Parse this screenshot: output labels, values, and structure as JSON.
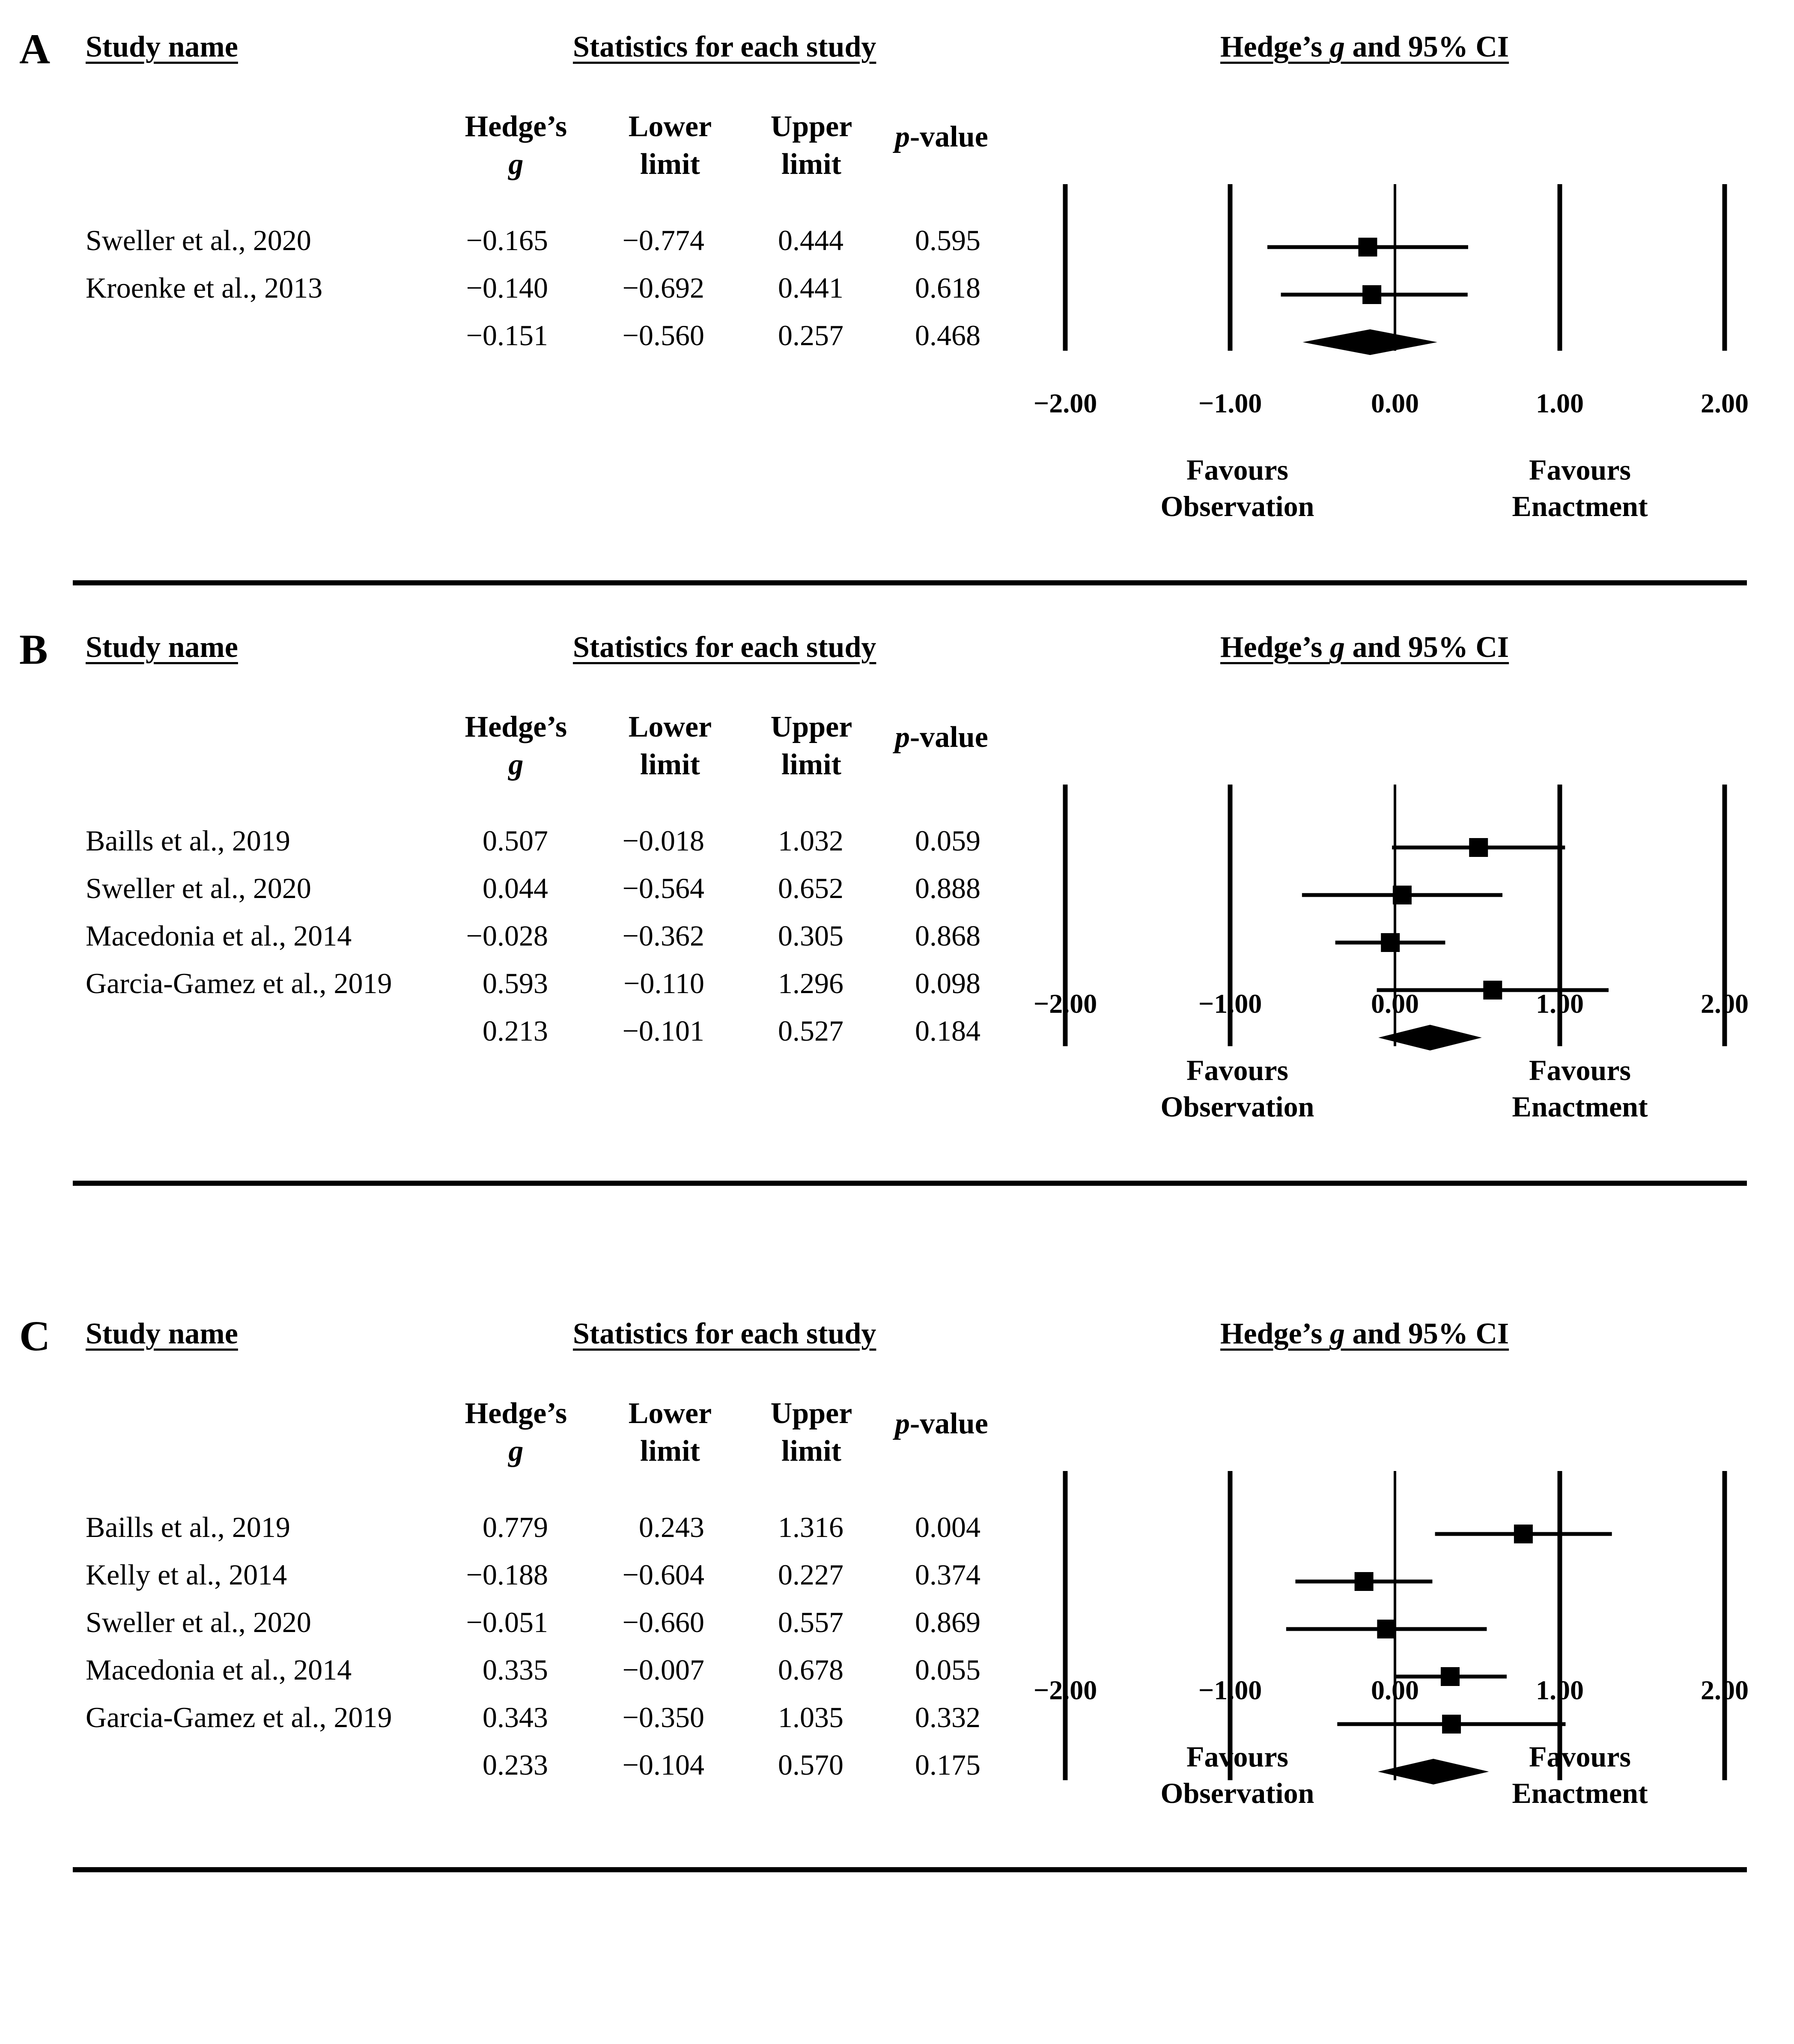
{
  "common": {
    "study_name_header": "Study name",
    "stats_header": "Statistics for each study",
    "ci_header_prefix": "Hedge’s ",
    "ci_header_g": "g",
    "ci_header_suffix": " and 95% CI",
    "col_hedges": [
      "Hedge’s",
      "g"
    ],
    "col_lower": [
      "Lower",
      "limit"
    ],
    "col_upper": [
      "Upper",
      "limit"
    ],
    "col_p_italic": "p",
    "col_p_rest": "-value",
    "tick_labels": [
      "−2.00",
      "−1.00",
      "0.00",
      "1.00",
      "2.00"
    ],
    "favours_left": [
      "Favours",
      "Observation"
    ],
    "favours_right": [
      "Favours",
      "Enactment"
    ]
  },
  "chart_data": [
    {
      "type": "forest",
      "panel": "A",
      "xlim": [
        -2,
        2
      ],
      "ticks": [
        -2,
        -1,
        0,
        1,
        2
      ],
      "studies": [
        {
          "name": "Sweller et al., 2020",
          "g": -0.165,
          "lower": -0.774,
          "upper": 0.444,
          "p": 0.595,
          "g_str": "−0.165",
          "lower_str": "−0.774",
          "upper_str": "0.444",
          "p_str": "0.595"
        },
        {
          "name": "Kroenke et al., 2013",
          "g": -0.14,
          "lower": -0.692,
          "upper": 0.441,
          "p": 0.618,
          "g_str": "−0.140",
          "lower_str": "−0.692",
          "upper_str": "0.441",
          "p_str": "0.618"
        }
      ],
      "summary": {
        "g": -0.151,
        "lower": -0.56,
        "upper": 0.257,
        "p": 0.468,
        "g_str": "−0.151",
        "lower_str": "−0.560",
        "upper_str": "0.257",
        "p_str": "0.468"
      }
    },
    {
      "type": "forest",
      "panel": "B",
      "xlim": [
        -2,
        2
      ],
      "ticks": [
        -2,
        -1,
        0,
        1,
        2
      ],
      "studies": [
        {
          "name": "Baills et al., 2019",
          "g": 0.507,
          "lower": -0.018,
          "upper": 1.032,
          "p": 0.059,
          "g_str": "0.507",
          "lower_str": "−0.018",
          "upper_str": "1.032",
          "p_str": "0.059"
        },
        {
          "name": "Sweller et al., 2020",
          "g": 0.044,
          "lower": -0.564,
          "upper": 0.652,
          "p": 0.888,
          "g_str": "0.044",
          "lower_str": "−0.564",
          "upper_str": "0.652",
          "p_str": "0.888"
        },
        {
          "name": "Macedonia et al., 2014",
          "g": -0.028,
          "lower": -0.362,
          "upper": 0.305,
          "p": 0.868,
          "g_str": "−0.028",
          "lower_str": "−0.362",
          "upper_str": "0.305",
          "p_str": "0.868"
        },
        {
          "name": "Garcia-Gamez et al., 2019",
          "g": 0.593,
          "lower": -0.11,
          "upper": 1.296,
          "p": 0.098,
          "g_str": "0.593",
          "lower_str": "−0.110",
          "upper_str": "1.296",
          "p_str": "0.098"
        }
      ],
      "summary": {
        "g": 0.213,
        "lower": -0.101,
        "upper": 0.527,
        "p": 0.184,
        "g_str": "0.213",
        "lower_str": "−0.101",
        "upper_str": "0.527",
        "p_str": "0.184"
      }
    },
    {
      "type": "forest",
      "panel": "C",
      "xlim": [
        -2,
        2
      ],
      "ticks": [
        -2,
        -1,
        0,
        1,
        2
      ],
      "studies": [
        {
          "name": "Baills et al., 2019",
          "g": 0.779,
          "lower": 0.243,
          "upper": 1.316,
          "p": 0.004,
          "g_str": "0.779",
          "lower_str": "0.243",
          "upper_str": "1.316",
          "p_str": "0.004"
        },
        {
          "name": "Kelly et al., 2014",
          "g": -0.188,
          "lower": -0.604,
          "upper": 0.227,
          "p": 0.374,
          "g_str": "−0.188",
          "lower_str": "−0.604",
          "upper_str": "0.227",
          "p_str": "0.374"
        },
        {
          "name": "Sweller et al., 2020",
          "g": -0.051,
          "lower": -0.66,
          "upper": 0.557,
          "p": 0.869,
          "g_str": "−0.051",
          "lower_str": "−0.660",
          "upper_str": "0.557",
          "p_str": "0.869"
        },
        {
          "name": "Macedonia et al., 2014",
          "g": 0.335,
          "lower": -0.007,
          "upper": 0.678,
          "p": 0.055,
          "g_str": "0.335",
          "lower_str": "−0.007",
          "upper_str": "0.678",
          "p_str": "0.055"
        },
        {
          "name": "Garcia-Gamez et al., 2019",
          "g": 0.343,
          "lower": -0.35,
          "upper": 1.035,
          "p": 0.332,
          "g_str": "0.343",
          "lower_str": "−0.350",
          "upper_str": "1.035",
          "p_str": "0.332"
        }
      ],
      "summary": {
        "g": 0.233,
        "lower": -0.104,
        "upper": 0.57,
        "p": 0.175,
        "g_str": "0.233",
        "lower_str": "−0.104",
        "upper_str": "0.570",
        "p_str": "0.175"
      }
    }
  ]
}
